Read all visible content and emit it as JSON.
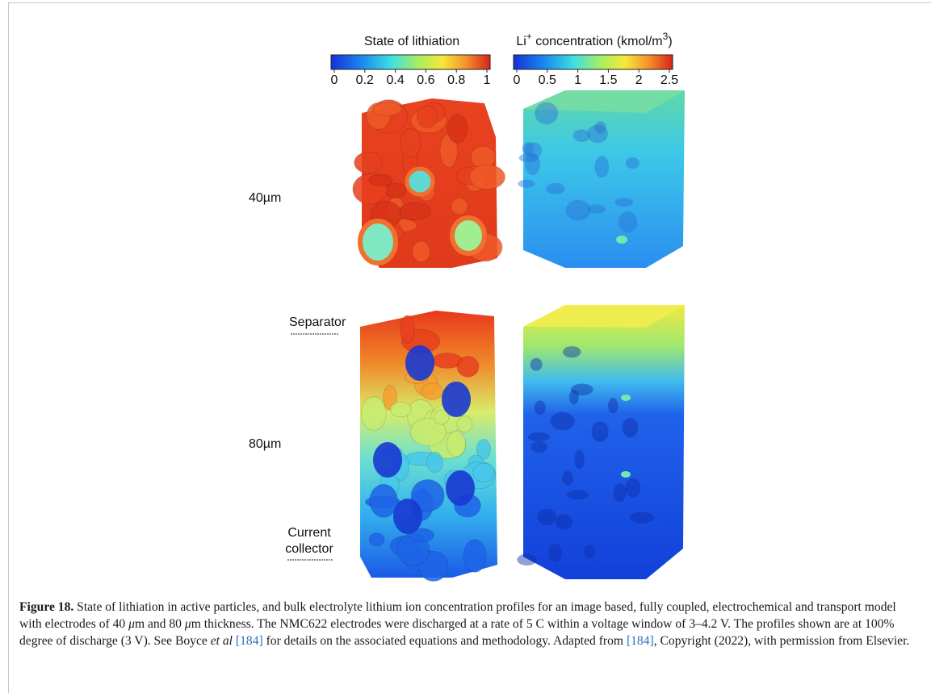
{
  "figure": {
    "colorbars": [
      {
        "title": [
          "State of lithiation"
        ],
        "ticks": [
          "0",
          "0.2",
          "0.4",
          "0.6",
          "0.8",
          "1"
        ]
      },
      {
        "title": [
          "Li",
          "+",
          " concentration (kmol/m",
          "3",
          ")"
        ],
        "ticks": [
          "0",
          "0.5",
          "1",
          "1.5",
          "2",
          "2.5"
        ]
      }
    ],
    "row_labels": {
      "top": "40µm",
      "separator": "Separator",
      "bottom": "80µm",
      "collector": [
        "Current",
        "collector"
      ]
    }
  },
  "caption": {
    "label": "Figure 18.",
    "parts": [
      " State of lithiation in active particles, and bulk electrolyte lithium ion concentration profiles for an image based, fully coupled, electrochemical and transport model with electrodes of 40 ",
      "μ",
      "m and 80 ",
      "μ",
      "m thickness. The NMC622 electrodes were discharged at a rate of 5 C within a voltage window of 3–4.2 V. The profiles shown are at 100% degree of discharge (3 V). See Boyce ",
      "et al",
      " ",
      "[184]",
      " for details on the associated equations and methodology. Adapted from ",
      "[184]",
      ", Copyright (2022), with permission from Elsevier."
    ]
  }
}
